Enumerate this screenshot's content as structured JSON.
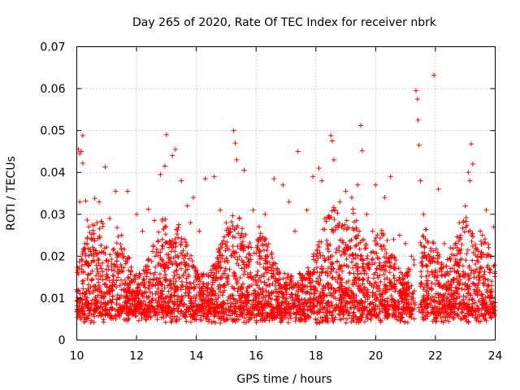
{
  "chart_data": {
    "type": "scatter",
    "title": "Day 265 of 2020, Rate Of TEC Index for receiver nbrk",
    "xlabel": "GPS time / hours",
    "ylabel": "ROTI / TECUs",
    "xlim": [
      10,
      24
    ],
    "ylim": [
      0,
      0.07
    ],
    "xticks": [
      "10",
      "12",
      "14",
      "16",
      "18",
      "20",
      "22",
      "24"
    ],
    "yticks": [
      "0",
      "0.01",
      "0.02",
      "0.03",
      "0.04",
      "0.05",
      "0.06",
      "0.07"
    ],
    "grid": true,
    "marker": "plus",
    "color": "#ff0000",
    "series": [
      {
        "name": "ROTI",
        "points": [
          [
            10.05,
            0.0455
          ],
          [
            10.1,
            0.0445
          ],
          [
            10.15,
            0.045
          ],
          [
            10.2,
            0.0488
          ],
          [
            10.2,
            0.0422
          ],
          [
            10.1,
            0.033
          ],
          [
            10.3,
            0.0332
          ],
          [
            10.35,
            0.0286
          ],
          [
            10.4,
            0.027
          ],
          [
            10.6,
            0.0338
          ],
          [
            10.75,
            0.033
          ],
          [
            10.95,
            0.0413
          ],
          [
            11.1,
            0.029
          ],
          [
            11.3,
            0.0355
          ],
          [
            11.7,
            0.0355
          ],
          [
            12.0,
            0.03
          ],
          [
            12.4,
            0.0312
          ],
          [
            12.6,
            0.0285
          ],
          [
            12.8,
            0.0395
          ],
          [
            12.95,
            0.0415
          ],
          [
            13.0,
            0.049
          ],
          [
            13.2,
            0.044
          ],
          [
            13.3,
            0.0455
          ],
          [
            13.5,
            0.038
          ],
          [
            13.7,
            0.032
          ],
          [
            13.9,
            0.034
          ],
          [
            14.3,
            0.0385
          ],
          [
            14.6,
            0.039
          ],
          [
            14.8,
            0.031
          ],
          [
            15.0,
            0.028
          ],
          [
            15.25,
            0.05
          ],
          [
            15.3,
            0.047
          ],
          [
            15.35,
            0.043
          ],
          [
            15.6,
            0.0405
          ],
          [
            15.9,
            0.031
          ],
          [
            16.3,
            0.03
          ],
          [
            16.6,
            0.0385
          ],
          [
            16.9,
            0.037
          ],
          [
            17.1,
            0.033
          ],
          [
            17.4,
            0.045
          ],
          [
            17.7,
            0.031
          ],
          [
            17.9,
            0.039
          ],
          [
            18.1,
            0.041
          ],
          [
            18.2,
            0.038
          ],
          [
            18.5,
            0.0488
          ],
          [
            18.55,
            0.0475
          ],
          [
            18.6,
            0.043
          ],
          [
            18.8,
            0.033
          ],
          [
            19.0,
            0.0355
          ],
          [
            19.2,
            0.034
          ],
          [
            19.4,
            0.037
          ],
          [
            19.5,
            0.0512
          ],
          [
            19.55,
            0.0452
          ],
          [
            19.7,
            0.03
          ],
          [
            20.0,
            0.037
          ],
          [
            20.3,
            0.034
          ],
          [
            20.5,
            0.039
          ],
          [
            20.8,
            0.025
          ],
          [
            21.0,
            0.023
          ],
          [
            21.35,
            0.0595
          ],
          [
            21.4,
            0.0575
          ],
          [
            21.42,
            0.0525
          ],
          [
            21.45,
            0.0465
          ],
          [
            21.5,
            0.038
          ],
          [
            21.6,
            0.03
          ],
          [
            21.95,
            0.0632
          ],
          [
            22.1,
            0.036
          ],
          [
            22.5,
            0.022
          ],
          [
            23.0,
            0.032
          ],
          [
            23.1,
            0.04
          ],
          [
            23.15,
            0.038
          ],
          [
            23.2,
            0.0468
          ],
          [
            23.25,
            0.042
          ],
          [
            23.7,
            0.031
          ],
          [
            23.95,
            0.027
          ],
          [
            10.5,
            0.024
          ],
          [
            11.5,
            0.025
          ],
          [
            12.2,
            0.026
          ],
          [
            13.8,
            0.028
          ],
          [
            14.1,
            0.026
          ],
          [
            15.5,
            0.025
          ],
          [
            16.1,
            0.027
          ],
          [
            17.3,
            0.026
          ],
          [
            18.3,
            0.029
          ],
          [
            19.9,
            0.026
          ],
          [
            20.6,
            0.024
          ],
          [
            21.2,
            0.02
          ],
          [
            22.3,
            0.023
          ],
          [
            22.8,
            0.028
          ],
          [
            23.5,
            0.026
          ]
        ]
      }
    ]
  }
}
